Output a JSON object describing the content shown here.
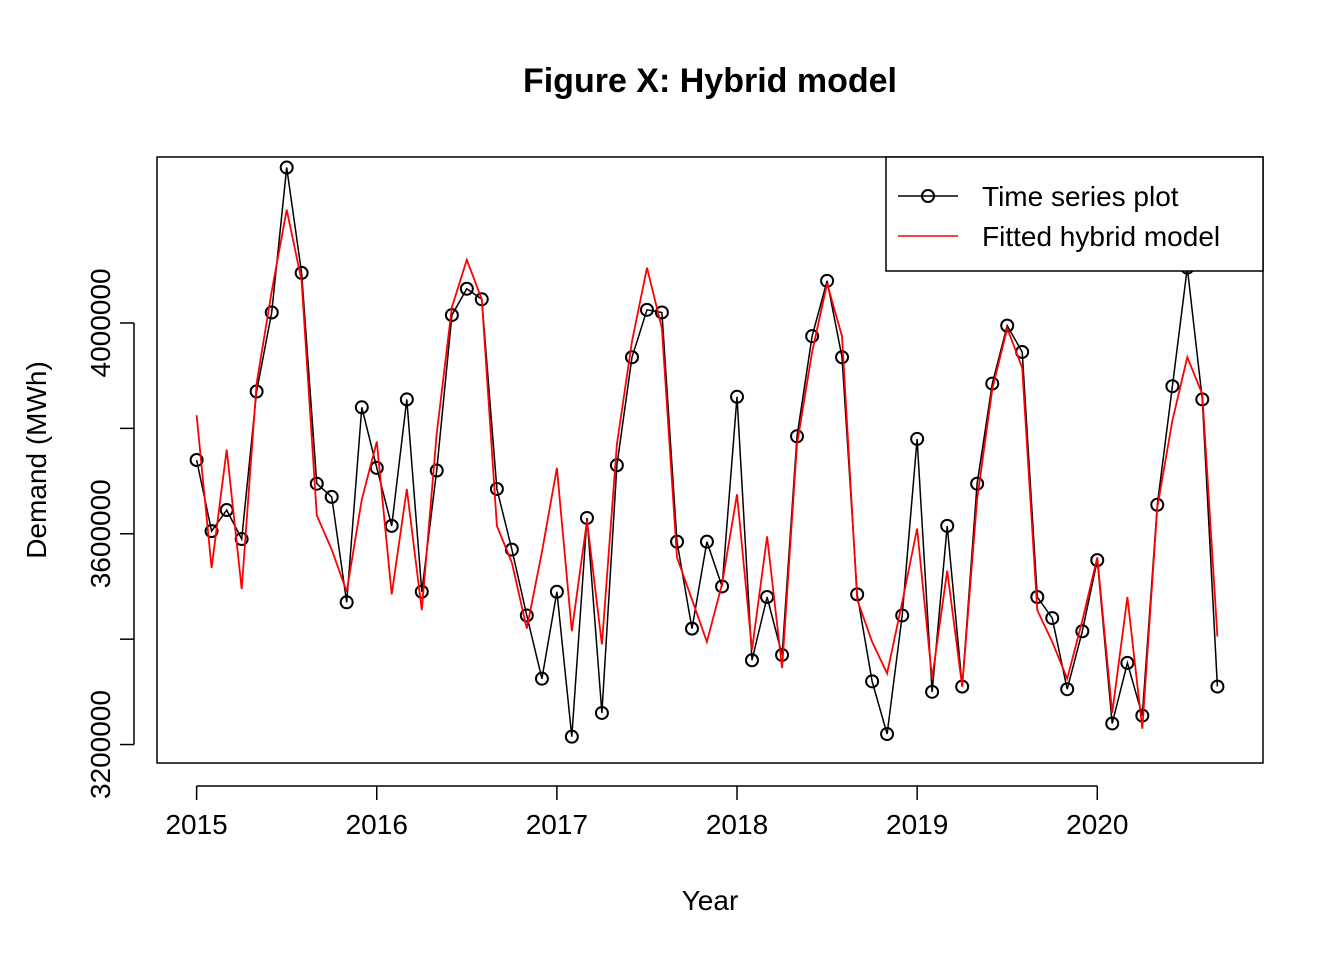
{
  "chart_data": {
    "type": "line",
    "title": "Figure X: Hybrid model",
    "xlabel": "Year",
    "ylabel": "Demand (MWh)",
    "xlim": [
      2014.78,
      2020.92
    ],
    "ylim": [
      3165000,
      4315000
    ],
    "x_ticks": [
      2015,
      2016,
      2017,
      2018,
      2019,
      2020
    ],
    "y_ticks": [
      3200000,
      3600000,
      4000000
    ],
    "x_tick_labels": [
      "2015",
      "2016",
      "2017",
      "2018",
      "2019",
      "2020"
    ],
    "y_tick_labels": [
      "3200000",
      "3600000",
      "4000000"
    ],
    "grid": false,
    "legend_position": "top-right",
    "x": [
      2015.0,
      2015.083,
      2015.167,
      2015.25,
      2015.333,
      2015.417,
      2015.5,
      2015.583,
      2015.667,
      2015.75,
      2015.833,
      2015.917,
      2016.0,
      2016.083,
      2016.167,
      2016.25,
      2016.333,
      2016.417,
      2016.5,
      2016.583,
      2016.667,
      2016.75,
      2016.833,
      2016.917,
      2017.0,
      2017.083,
      2017.167,
      2017.25,
      2017.333,
      2017.417,
      2017.5,
      2017.583,
      2017.667,
      2017.75,
      2017.833,
      2017.917,
      2018.0,
      2018.083,
      2018.167,
      2018.25,
      2018.333,
      2018.417,
      2018.5,
      2018.583,
      2018.667,
      2018.75,
      2018.833,
      2018.917,
      2019.0,
      2019.083,
      2019.167,
      2019.25,
      2019.333,
      2019.417,
      2019.5,
      2019.583,
      2019.667,
      2019.75,
      2019.833,
      2019.917,
      2020.0,
      2020.083,
      2020.167,
      2020.25,
      2020.333,
      2020.417,
      2020.5,
      2020.583,
      2020.667
    ],
    "series": [
      {
        "name": "Time series plot",
        "color": "#000000",
        "marker": "open-circle",
        "values": [
          3740000,
          3605000,
          3645000,
          3590000,
          3870000,
          4020000,
          4295000,
          4095000,
          3695000,
          3670000,
          3470000,
          3840000,
          3725000,
          3615000,
          3855000,
          3490000,
          3720000,
          4015000,
          4065000,
          4045000,
          3685000,
          3570000,
          3445000,
          3325000,
          3490000,
          3215000,
          3630000,
          3260000,
          3730000,
          3935000,
          4025000,
          4020000,
          3585000,
          3420000,
          3585000,
          3500000,
          3860000,
          3360000,
          3480000,
          3370000,
          3785000,
          3975000,
          4080000,
          3935000,
          3485000,
          3320000,
          3220000,
          3445000,
          3780000,
          3300000,
          3615000,
          3310000,
          3695000,
          3885000,
          3995000,
          3945000,
          3480000,
          3440000,
          3305000,
          3415000,
          3550000,
          3240000,
          3355000,
          3255000,
          3655000,
          3880000,
          4105000,
          3855000,
          3310000
        ]
      },
      {
        "name": "Fitted hybrid model",
        "color": "#ff0000",
        "marker": "none",
        "values": [
          3825000,
          3535000,
          3760000,
          3495000,
          3885000,
          4060000,
          4215000,
          4080000,
          3635000,
          3570000,
          3490000,
          3665000,
          3775000,
          3485000,
          3685000,
          3455000,
          3790000,
          4030000,
          4120000,
          4045000,
          3615000,
          3545000,
          3420000,
          3565000,
          3725000,
          3415000,
          3625000,
          3390000,
          3770000,
          3965000,
          4105000,
          3990000,
          3555000,
          3475000,
          3395000,
          3505000,
          3675000,
          3380000,
          3595000,
          3345000,
          3770000,
          3945000,
          4075000,
          3975000,
          3475000,
          3395000,
          3335000,
          3470000,
          3610000,
          3325000,
          3530000,
          3310000,
          3665000,
          3875000,
          3990000,
          3915000,
          3455000,
          3395000,
          3325000,
          3435000,
          3555000,
          3260000,
          3480000,
          3230000,
          3650000,
          3815000,
          3935000,
          3865000,
          3405000
        ]
      }
    ]
  }
}
